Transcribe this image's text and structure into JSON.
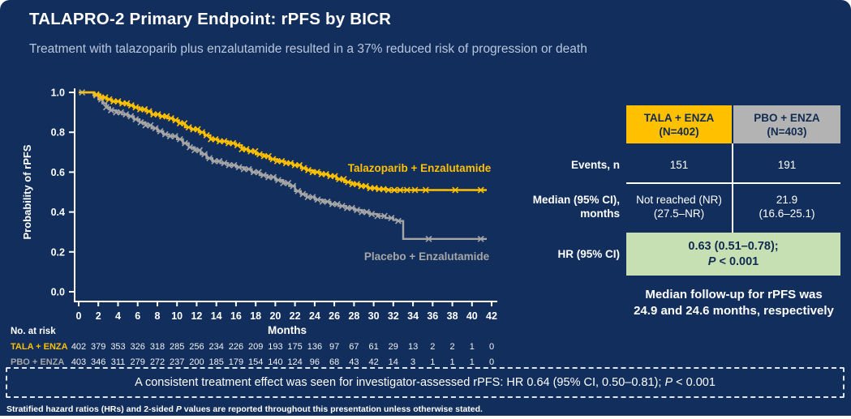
{
  "colors": {
    "background": "#122E5C",
    "accent_yellow": "#FFC000",
    "accent_gray": "#A6A6A6",
    "header_gray_bg": "#B3B3B3",
    "green_highlight": "#C6E0B4",
    "subtitle_text": "#B9C7DD",
    "table_header_text": "#122B52",
    "white": "#FFFFFF"
  },
  "header": {
    "title": "TALAPRO-2 Primary Endpoint: rPFS by BICR",
    "subtitle": "Treatment with talazoparib plus enzalutamide resulted in a 37% reduced risk of progression or death"
  },
  "chart_data": {
    "type": "line",
    "subtype": "kaplan-meier-step",
    "title": "",
    "xlabel": "Months",
    "ylabel": "Probability of rPFS",
    "xlim": [
      0,
      42
    ],
    "ylim": [
      0.0,
      1.0
    ],
    "xticks": [
      0,
      2,
      4,
      6,
      8,
      10,
      12,
      14,
      16,
      18,
      20,
      22,
      24,
      26,
      28,
      30,
      32,
      34,
      36,
      38,
      40,
      42
    ],
    "yticks": [
      1.0,
      0.8,
      0.6,
      0.4,
      0.2,
      0.0
    ],
    "grid": false,
    "legend_position": "inline-labels",
    "series": [
      {
        "id": "tala",
        "name": "Talazoparib + Enzalutamide",
        "short": "TALA + ENZA",
        "color": "#FFC000",
        "points": [
          [
            0,
            1.0
          ],
          [
            1.6,
            0.99
          ],
          [
            2.2,
            0.975
          ],
          [
            2.8,
            0.965
          ],
          [
            3.4,
            0.955
          ],
          [
            4.2,
            0.945
          ],
          [
            5.0,
            0.935
          ],
          [
            5.6,
            0.925
          ],
          [
            6.2,
            0.915
          ],
          [
            6.8,
            0.905
          ],
          [
            7.4,
            0.89
          ],
          [
            8.2,
            0.88
          ],
          [
            9.0,
            0.87
          ],
          [
            9.6,
            0.86
          ],
          [
            10.2,
            0.845
          ],
          [
            10.8,
            0.825
          ],
          [
            11.4,
            0.815
          ],
          [
            12.2,
            0.8
          ],
          [
            12.8,
            0.785
          ],
          [
            13.4,
            0.765
          ],
          [
            14.2,
            0.755
          ],
          [
            15.2,
            0.745
          ],
          [
            16.0,
            0.735
          ],
          [
            16.6,
            0.715
          ],
          [
            17.2,
            0.705
          ],
          [
            18.0,
            0.69
          ],
          [
            18.8,
            0.68
          ],
          [
            19.4,
            0.665
          ],
          [
            20.2,
            0.655
          ],
          [
            21.0,
            0.645
          ],
          [
            21.8,
            0.635
          ],
          [
            22.6,
            0.62
          ],
          [
            23.2,
            0.61
          ],
          [
            23.8,
            0.6
          ],
          [
            24.6,
            0.59
          ],
          [
            25.4,
            0.58
          ],
          [
            26.2,
            0.565
          ],
          [
            27.0,
            0.55
          ],
          [
            27.8,
            0.54
          ],
          [
            28.6,
            0.53
          ],
          [
            29.4,
            0.52
          ],
          [
            30.4,
            0.515
          ],
          [
            31.4,
            0.51
          ],
          [
            41.5,
            0.51
          ]
        ],
        "censor_months": [
          1.8,
          2.25,
          2.7,
          3.1,
          3.55,
          4.0,
          4.45,
          4.9,
          5.35,
          5.8,
          6.25,
          6.7,
          7.15,
          7.6,
          8.05,
          8.5,
          8.95,
          9.4,
          9.85,
          10.3,
          10.75,
          11.2,
          11.65,
          12.1,
          12.55,
          13.0,
          13.45,
          13.9,
          14.35,
          14.8,
          15.25,
          15.7,
          16.15,
          16.6,
          17.05,
          17.5,
          17.95,
          18.4,
          18.85,
          19.3,
          19.75,
          20.2,
          20.65,
          21.1,
          21.55,
          22.0,
          22.45,
          22.9,
          23.35,
          23.8,
          24.25,
          24.7,
          25.15,
          25.6,
          26.05,
          26.5,
          26.95,
          27.4,
          27.85,
          28.3,
          28.75,
          29.2,
          29.65,
          30.1,
          30.55,
          31.0,
          31.5,
          32.1,
          32.7,
          33.4,
          34.2,
          35.3,
          38.3,
          40.9
        ]
      },
      {
        "id": "pbo",
        "name": "Placebo + Enzalutamide",
        "short": "PBO + ENZA",
        "color": "#A6A6A6",
        "points": [
          [
            0,
            1.0
          ],
          [
            1.5,
            0.985
          ],
          [
            2.0,
            0.965
          ],
          [
            2.4,
            0.945
          ],
          [
            2.8,
            0.925
          ],
          [
            3.2,
            0.91
          ],
          [
            3.8,
            0.9
          ],
          [
            4.4,
            0.89
          ],
          [
            5.0,
            0.88
          ],
          [
            5.6,
            0.865
          ],
          [
            6.2,
            0.85
          ],
          [
            6.8,
            0.835
          ],
          [
            7.4,
            0.82
          ],
          [
            8.0,
            0.805
          ],
          [
            8.6,
            0.79
          ],
          [
            9.2,
            0.78
          ],
          [
            10.0,
            0.765
          ],
          [
            10.6,
            0.745
          ],
          [
            11.2,
            0.725
          ],
          [
            11.8,
            0.71
          ],
          [
            12.4,
            0.69
          ],
          [
            13.0,
            0.67
          ],
          [
            13.6,
            0.655
          ],
          [
            14.4,
            0.645
          ],
          [
            15.2,
            0.635
          ],
          [
            16.0,
            0.625
          ],
          [
            16.8,
            0.615
          ],
          [
            17.6,
            0.6
          ],
          [
            18.4,
            0.585
          ],
          [
            19.2,
            0.575
          ],
          [
            20.0,
            0.56
          ],
          [
            20.8,
            0.545
          ],
          [
            21.4,
            0.53
          ],
          [
            22.0,
            0.505
          ],
          [
            22.6,
            0.49
          ],
          [
            23.2,
            0.475
          ],
          [
            24.0,
            0.462
          ],
          [
            24.8,
            0.452
          ],
          [
            25.6,
            0.44
          ],
          [
            26.4,
            0.43
          ],
          [
            27.2,
            0.42
          ],
          [
            28.0,
            0.41
          ],
          [
            28.8,
            0.4
          ],
          [
            29.6,
            0.39
          ],
          [
            30.4,
            0.38
          ],
          [
            31.2,
            0.37
          ],
          [
            32.0,
            0.36
          ],
          [
            32.4,
            0.355
          ],
          [
            33.0,
            0.265
          ],
          [
            41.5,
            0.265
          ]
        ],
        "censor_months": [
          0.35,
          1.8,
          2.3,
          2.8,
          3.3,
          3.8,
          4.3,
          4.8,
          5.3,
          5.8,
          6.3,
          6.8,
          7.3,
          7.8,
          8.3,
          8.8,
          9.3,
          9.8,
          10.3,
          10.8,
          11.3,
          11.8,
          12.3,
          12.8,
          13.3,
          13.8,
          14.3,
          14.8,
          15.3,
          15.8,
          16.3,
          16.8,
          17.3,
          17.8,
          18.3,
          18.8,
          19.3,
          19.8,
          20.3,
          20.8,
          21.3,
          21.8,
          22.3,
          22.8,
          23.3,
          23.8,
          24.3,
          24.8,
          25.3,
          25.8,
          26.3,
          26.8,
          27.3,
          27.8,
          28.3,
          28.8,
          29.3,
          29.8,
          30.4,
          31.1,
          31.8,
          32.5,
          35.6,
          40.9
        ]
      }
    ],
    "no_at_risk": {
      "label": "No. at risk",
      "months": [
        0,
        2,
        4,
        6,
        8,
        10,
        12,
        14,
        16,
        18,
        20,
        22,
        24,
        26,
        28,
        30,
        32,
        34,
        36,
        38,
        40,
        42
      ],
      "rows": [
        {
          "label": "TALA + ENZA",
          "color": "#FFC000",
          "values": [
            "402",
            "379",
            "353",
            "326",
            "318",
            "285",
            "256",
            "234",
            "226",
            "209",
            "193",
            "175",
            "136",
            "97",
            "67",
            "61",
            "29",
            "13",
            "2",
            "2",
            "1",
            "0"
          ]
        },
        {
          "label": "PBO + ENZA",
          "color": "#A6A6A6",
          "values": [
            "403",
            "346",
            "311",
            "279",
            "272",
            "237",
            "200",
            "185",
            "179",
            "154",
            "140",
            "124",
            "96",
            "68",
            "43",
            "42",
            "14",
            "3",
            "1",
            "1",
            "1",
            "0"
          ]
        }
      ]
    }
  },
  "table": {
    "columns": [
      {
        "header": "TALA + ENZA\n(N=402)"
      },
      {
        "header": "PBO + ENZA\n(N=403)"
      }
    ],
    "rows": {
      "events": {
        "label": "Events, n",
        "tala": "151",
        "pbo": "191"
      },
      "median": {
        "label": "Median (95% CI),\nmonths",
        "tala": "Not reached (NR)\n(27.5–NR)",
        "pbo": "21.9\n(16.6–25.1)"
      },
      "hr": {
        "label": "HR (95% CI)",
        "value_line1": "0.63 (0.51–0.78);",
        "p_italic": "P",
        "p_rest": " < 0.001"
      }
    }
  },
  "followup_note": {
    "line1": "Median follow-up for rPFS was",
    "line2": "24.9 and 24.6 months, respectively"
  },
  "consistency_box": {
    "before_p": "A consistent treatment effect was seen for investigator-assessed rPFS: HR 0.64 (95% CI, 0.50–0.81); ",
    "p_italic": "P",
    "after_p": " < 0.001"
  },
  "footnote": {
    "before_p": "Stratified hazard ratios (HRs) and 2-sided ",
    "p_italic": "P",
    "after_p": " values are reported throughout this presentation unless otherwise stated."
  }
}
